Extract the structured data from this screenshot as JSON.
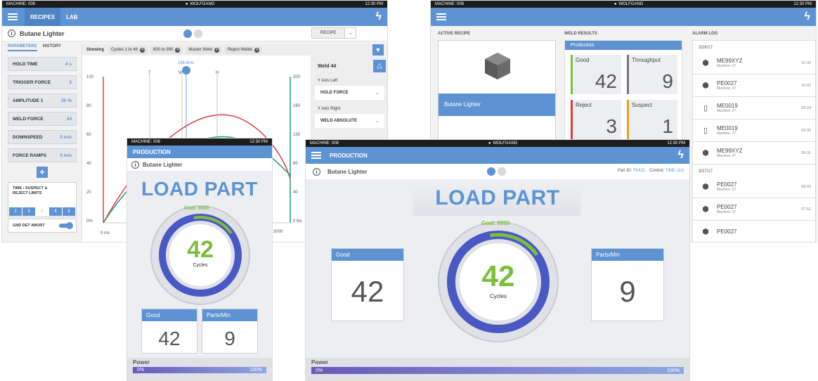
{
  "common": {
    "machine": "MACHINE: 008",
    "user": "WOLFGANG",
    "time": "12:30 PM",
    "recipe_name": "Butane Lighter"
  },
  "lab": {
    "tab_recipes": "RECIPES",
    "tab_lab": "LAB",
    "recipe_btn": "RECIPE",
    "subtabs": [
      "PARAMETERS",
      "HISTORY"
    ],
    "params": [
      {
        "label": "HOLD TIME",
        "value": "4 s"
      },
      {
        "label": "TRIGGER FORCE",
        "value": "3"
      },
      {
        "label": "AMPLITUDE 1",
        "value": "30 %"
      },
      {
        "label": "WELD FORCE",
        "value": "34"
      },
      {
        "label": "DOWNSPEED",
        "value": "5 in/s"
      },
      {
        "label": "FORCE RAMPS",
        "value": "5 in/s"
      }
    ],
    "add": "+",
    "limits_label": "TIME : SUSPECT & REJECT LIMITS",
    "limit_cells": [
      "2",
      "3",
      "✓",
      "4",
      "6"
    ],
    "gnd_label": "GND DET ABORT",
    "showing": "Showing",
    "chips": [
      "Cycles 1 to 46",
      "800 to 900",
      "Master Weld",
      "Reject Welds"
    ],
    "marker": "156.6ms",
    "markers": [
      "T",
      "W",
      "H"
    ],
    "left_ticks": [
      "100",
      "80",
      "60",
      "40",
      "20",
      "0%"
    ],
    "right_ticks": [
      "200",
      "160",
      "130",
      "80",
      "40",
      "0 lbs"
    ],
    "x_ticks": [
      "0 ms",
      "3000"
    ],
    "weld_title": "Weld 44",
    "y_left_label": "Y Axis Left",
    "y_left_value": "HOLD FORCE",
    "y_right_label": "Y Axis Right",
    "y_right_value": "WELD ABSOLUTE"
  },
  "dash": {
    "active_recipe": "ACTIVE RECIPE",
    "weld_results": "WELD RESULTS",
    "alarm_log": "ALARM LOG",
    "production_tab": "Production",
    "results": [
      {
        "label": "Good",
        "value": "42",
        "color": "#7cbf3d"
      },
      {
        "label": "Throughput",
        "value": "9",
        "color": "#777777"
      },
      {
        "label": "Reject",
        "value": "3",
        "color": "#e03a3a"
      },
      {
        "label": "Suspect",
        "value": "1",
        "color": "#f0a020"
      }
    ],
    "date1": "3/28/17",
    "alarms1": [
      {
        "id": "ME99XYZ",
        "machine": "Machine: 27",
        "time": "10:30",
        "icon": "cube"
      },
      {
        "id": "PE0027",
        "machine": "Machine: 27",
        "time": "10:02",
        "icon": "cube"
      },
      {
        "id": "ME0019",
        "machine": "Machine: 27",
        "time": "09:34",
        "icon": "door"
      },
      {
        "id": "ME0019",
        "machine": "Machine: 27",
        "time": "09:30",
        "icon": "door"
      },
      {
        "id": "ME99XYZ",
        "machine": "Machine: 27",
        "time": "08:31",
        "icon": "cube"
      }
    ],
    "date2": "3/27/17",
    "alarms2": [
      {
        "id": "PE0027",
        "machine": "Machine: 27",
        "time": "08:00",
        "icon": "cube"
      },
      {
        "id": "PE0027",
        "machine": "Machine: 27",
        "time": "07:52",
        "icon": "cube"
      },
      {
        "id": "PE0027",
        "machine": "",
        "time": "",
        "icon": "cube"
      }
    ]
  },
  "prod_small": {
    "title": "PRODUCTION",
    "load": "LOAD PART",
    "goal": "Goal: 6000",
    "cycles": "42",
    "cycles_label": "Cycles",
    "good_label": "Good",
    "good": "42",
    "ppm_label": "Parts/Min",
    "ppm": "9",
    "power": "Power",
    "p0": "0%",
    "p100": "100%",
    "progress": 0.007
  },
  "prod_big": {
    "title": "PRODUCTION",
    "load": "LOAD PART",
    "goal": "Goal: 6000",
    "cycles": "42",
    "cycles_label": "Cycles",
    "good_label": "Good",
    "good": "42",
    "ppm_label": "Parts/Min",
    "ppm": "9",
    "part_id_label": "Part ID:",
    "part_id": "TK421",
    "control_label": "Control:",
    "control": "TIME (1s)",
    "power": "Power",
    "p0": "0%",
    "p100": "100%",
    "progress": 0.007
  }
}
